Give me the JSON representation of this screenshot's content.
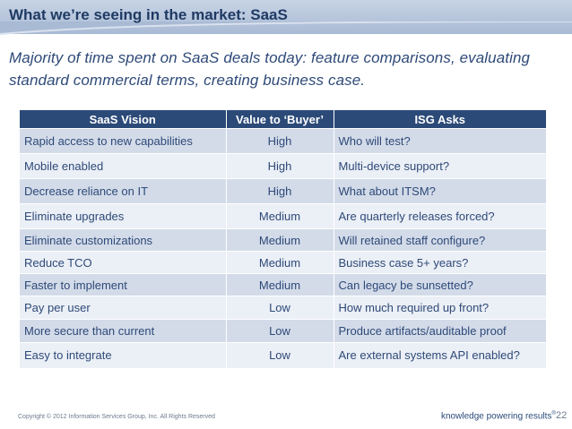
{
  "slide": {
    "title": "What we’re seeing in the market: SaaS",
    "subtitle": "Majority of time spent on SaaS deals today: feature comparisons, evaluating standard commercial terms, creating business case."
  },
  "table": {
    "headers": [
      "SaaS Vision",
      "Value to ‘Buyer’",
      "ISG Asks"
    ],
    "rows": [
      [
        "Rapid access to new capabilities",
        "High",
        "Who will test?"
      ],
      [
        "Mobile enabled",
        "High",
        "Multi-device support?"
      ],
      [
        "Decrease reliance on IT",
        "High",
        "What about ITSM?"
      ],
      [
        "Eliminate upgrades",
        "Medium",
        "Are quarterly releases forced?"
      ],
      [
        "Eliminate customizations",
        "Medium",
        "Will retained staff configure?"
      ],
      [
        "Reduce TCO",
        "Medium",
        "Business case 5+ years?"
      ],
      [
        "Faster to implement",
        "Medium",
        "Can legacy be sunsetted?"
      ],
      [
        "Pay per user",
        "Low",
        "How much required up front?"
      ],
      [
        "More secure than current",
        "Low",
        "Produce artifacts/auditable proof"
      ],
      [
        "Easy to integrate",
        "Low",
        "Are external systems API enabled?"
      ]
    ]
  },
  "footer": {
    "copyright": "Copyright © 2012 Information Services Group, Inc. All Rights Reserved",
    "tagline": "knowledge powering results",
    "trademark": "®",
    "page_number": "22"
  },
  "colors": {
    "title_text": "#1f3a63",
    "header_bg": "#2b4a78",
    "row_dark": "#d3dbe9",
    "row_light": "#ebeff6",
    "body_text": "#2e4a78"
  }
}
